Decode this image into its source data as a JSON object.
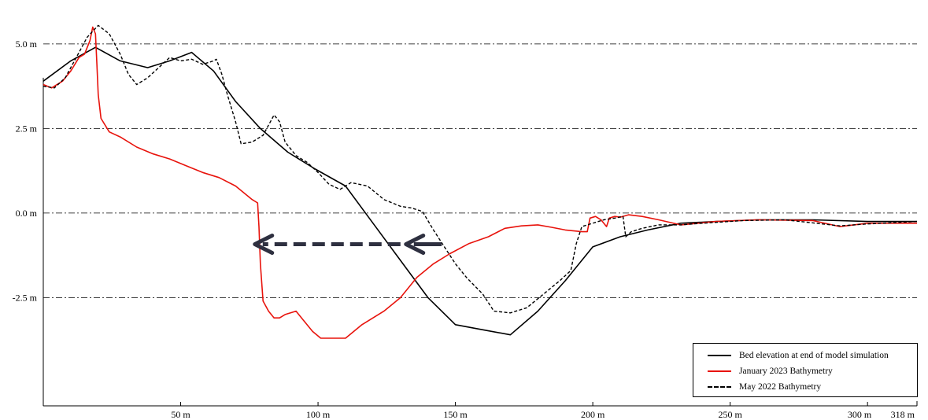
{
  "chart_data": {
    "type": "line",
    "title": "",
    "xlabel": "",
    "ylabel": "",
    "x_unit": "m",
    "y_unit": "m",
    "xlim": [
      0,
      318
    ],
    "ylim": [
      -5.7,
      6.3
    ],
    "x_ticks": [
      {
        "value": 50,
        "label": "50 m"
      },
      {
        "value": 100,
        "label": "100 m"
      },
      {
        "value": 150,
        "label": "150 m"
      },
      {
        "value": 200,
        "label": "200 m"
      },
      {
        "value": 250,
        "label": "250 m"
      },
      {
        "value": 300,
        "label": "300 m"
      },
      {
        "value": 318,
        "label": "318 m"
      }
    ],
    "y_ticks": [
      {
        "value": 5.0,
        "label": "5.0 m"
      },
      {
        "value": 2.5,
        "label": "2.5 m"
      },
      {
        "value": 0.0,
        "label": "0.0 m"
      },
      {
        "value": -2.5,
        "label": "-2.5 m"
      }
    ],
    "grid": "horizontal dash-dot at y ticks",
    "legend_position": "bottom-right",
    "series": [
      {
        "name": "Bed elevation at end of model simulation",
        "color": "#000000",
        "style": "solid",
        "points": [
          [
            0,
            3.9
          ],
          [
            10,
            4.5
          ],
          [
            19,
            4.9
          ],
          [
            28,
            4.5
          ],
          [
            38,
            4.3
          ],
          [
            46,
            4.5
          ],
          [
            54,
            4.75
          ],
          [
            62,
            4.2
          ],
          [
            70,
            3.3
          ],
          [
            79,
            2.5
          ],
          [
            89,
            1.8
          ],
          [
            99,
            1.3
          ],
          [
            110,
            0.8
          ],
          [
            120,
            -0.3
          ],
          [
            130,
            -1.4
          ],
          [
            140,
            -2.5
          ],
          [
            150,
            -3.3
          ],
          [
            160,
            -3.45
          ],
          [
            170,
            -3.6
          ],
          [
            180,
            -2.9
          ],
          [
            190,
            -2.0
          ],
          [
            200,
            -1.0
          ],
          [
            210,
            -0.7
          ],
          [
            220,
            -0.5
          ],
          [
            232,
            -0.3
          ],
          [
            245,
            -0.25
          ],
          [
            260,
            -0.2
          ],
          [
            280,
            -0.2
          ],
          [
            300,
            -0.25
          ],
          [
            318,
            -0.25
          ]
        ]
      },
      {
        "name": "January 2023 Bathymetry",
        "color": "#e8130c",
        "style": "solid",
        "points": [
          [
            0,
            3.8
          ],
          [
            3,
            3.7
          ],
          [
            7,
            3.9
          ],
          [
            10,
            4.2
          ],
          [
            13,
            4.6
          ],
          [
            15,
            4.7
          ],
          [
            17,
            5.1
          ],
          [
            18,
            5.5
          ],
          [
            19,
            5.3
          ],
          [
            19.5,
            4.4
          ],
          [
            20,
            3.5
          ],
          [
            21,
            2.8
          ],
          [
            24,
            2.4
          ],
          [
            28,
            2.25
          ],
          [
            34,
            1.95
          ],
          [
            40,
            1.75
          ],
          [
            46,
            1.6
          ],
          [
            52,
            1.4
          ],
          [
            58,
            1.2
          ],
          [
            64,
            1.05
          ],
          [
            70,
            0.8
          ],
          [
            76,
            0.4
          ],
          [
            78,
            0.3
          ],
          [
            78.5,
            -0.4
          ],
          [
            79,
            -1.5
          ],
          [
            80,
            -2.6
          ],
          [
            82,
            -2.9
          ],
          [
            84,
            -3.1
          ],
          [
            86,
            -3.1
          ],
          [
            88,
            -3.0
          ],
          [
            92,
            -2.9
          ],
          [
            94,
            -3.1
          ],
          [
            98,
            -3.5
          ],
          [
            101,
            -3.7
          ],
          [
            104,
            -3.7
          ],
          [
            110,
            -3.7
          ],
          [
            116,
            -3.3
          ],
          [
            124,
            -2.9
          ],
          [
            130,
            -2.5
          ],
          [
            136,
            -1.9
          ],
          [
            142,
            -1.5
          ],
          [
            148,
            -1.2
          ],
          [
            155,
            -0.9
          ],
          [
            162,
            -0.7
          ],
          [
            168,
            -0.45
          ],
          [
            174,
            -0.38
          ],
          [
            180,
            -0.35
          ],
          [
            185,
            -0.42
          ],
          [
            190,
            -0.5
          ],
          [
            196,
            -0.55
          ],
          [
            198,
            -0.55
          ],
          [
            199,
            -0.15
          ],
          [
            201,
            -0.1
          ],
          [
            203,
            -0.2
          ],
          [
            205,
            -0.4
          ],
          [
            206,
            -0.15
          ],
          [
            208,
            -0.1
          ],
          [
            210,
            -0.12
          ],
          [
            213,
            -0.05
          ],
          [
            218,
            -0.1
          ],
          [
            224,
            -0.2
          ],
          [
            232,
            -0.35
          ],
          [
            245,
            -0.25
          ],
          [
            260,
            -0.2
          ],
          [
            280,
            -0.22
          ],
          [
            290,
            -0.4
          ],
          [
            300,
            -0.3
          ],
          [
            318,
            -0.3
          ]
        ]
      },
      {
        "name": "May 2022 Bathymetry",
        "color": "#000000",
        "style": "dashed",
        "points": [
          [
            0,
            3.75
          ],
          [
            4,
            3.7
          ],
          [
            8,
            4.0
          ],
          [
            12,
            4.6
          ],
          [
            16,
            5.2
          ],
          [
            20,
            5.55
          ],
          [
            24,
            5.3
          ],
          [
            28,
            4.7
          ],
          [
            31,
            4.1
          ],
          [
            34,
            3.8
          ],
          [
            38,
            4.0
          ],
          [
            42,
            4.3
          ],
          [
            46,
            4.6
          ],
          [
            50,
            4.5
          ],
          [
            54,
            4.55
          ],
          [
            58,
            4.4
          ],
          [
            62,
            4.5
          ],
          [
            63,
            4.55
          ],
          [
            65,
            4.1
          ],
          [
            67,
            3.5
          ],
          [
            70,
            2.7
          ],
          [
            72,
            2.05
          ],
          [
            76,
            2.1
          ],
          [
            80,
            2.3
          ],
          [
            82,
            2.6
          ],
          [
            84,
            2.9
          ],
          [
            86,
            2.7
          ],
          [
            88,
            2.1
          ],
          [
            92,
            1.7
          ],
          [
            96,
            1.5
          ],
          [
            100,
            1.2
          ],
          [
            104,
            0.85
          ],
          [
            108,
            0.7
          ],
          [
            112,
            0.9
          ],
          [
            118,
            0.8
          ],
          [
            124,
            0.4
          ],
          [
            130,
            0.2
          ],
          [
            134,
            0.15
          ],
          [
            138,
            0.05
          ],
          [
            142,
            -0.5
          ],
          [
            146,
            -1.0
          ],
          [
            150,
            -1.5
          ],
          [
            154,
            -1.9
          ],
          [
            160,
            -2.4
          ],
          [
            164,
            -2.9
          ],
          [
            170,
            -2.95
          ],
          [
            176,
            -2.8
          ],
          [
            182,
            -2.4
          ],
          [
            188,
            -2.0
          ],
          [
            192,
            -1.7
          ],
          [
            194,
            -0.9
          ],
          [
            196,
            -0.4
          ],
          [
            200,
            -0.3
          ],
          [
            204,
            -0.2
          ],
          [
            208,
            -0.15
          ],
          [
            211,
            -0.1
          ],
          [
            212,
            -0.7
          ],
          [
            214,
            -0.55
          ],
          [
            218,
            -0.45
          ],
          [
            224,
            -0.35
          ],
          [
            232,
            -0.35
          ],
          [
            240,
            -0.3
          ],
          [
            255,
            -0.22
          ],
          [
            270,
            -0.2
          ],
          [
            290,
            -0.38
          ],
          [
            300,
            -0.32
          ],
          [
            318,
            -0.25
          ]
        ]
      }
    ],
    "annotations": [
      {
        "type": "arrow",
        "style": "dashed",
        "color": "#2e3040",
        "from_x": 130,
        "to_x": 77,
        "y": -0.92
      },
      {
        "type": "arrow",
        "style": "solid",
        "color": "#2e3040",
        "from_x": 145,
        "to_x": 132,
        "y": -0.92
      }
    ]
  }
}
